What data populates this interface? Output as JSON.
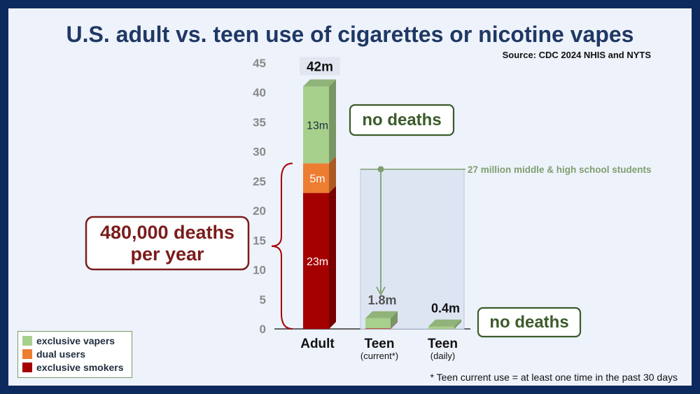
{
  "title": "U.S. adult vs. teen use of cigarettes or nicotine vapes",
  "source": "Source:  CDC 2024 NHIS and NYTS",
  "footnote": "* Teen current use = at least one time in the past 30 days",
  "annotations": {
    "deaths_adult": [
      "480,000 deaths",
      "per year"
    ],
    "no_deaths_vapers": "no deaths",
    "no_deaths_teen": "no deaths",
    "students_line": "27 million middle & high school students"
  },
  "colors": {
    "exclusive_vapers": "#a8d08d",
    "dual_users": "#ed7d31",
    "exclusive_smokers": "#a50000",
    "title": "#1f3864",
    "deaths_border": "#7b1c1c",
    "no_deaths": "#3b5b2a",
    "students": "#7f9f6f"
  },
  "chart_data": {
    "type": "bar",
    "stacked": true,
    "categories": [
      "Adult",
      "Teen",
      "Teen"
    ],
    "category_sublabels": [
      "",
      "(current*)",
      "(daily)"
    ],
    "series": [
      {
        "name": "exclusive smokers",
        "values": [
          23,
          0.07,
          0
        ]
      },
      {
        "name": "dual users",
        "values": [
          5,
          0.03,
          0
        ]
      },
      {
        "name": "exclusive vapers",
        "values": [
          13,
          1.7,
          0.4
        ]
      }
    ],
    "segment_labels": [
      [
        "23m",
        "",
        ""
      ],
      [
        "5m",
        "",
        ""
      ],
      [
        "13m",
        "",
        ""
      ]
    ],
    "total_labels": [
      "42m",
      "1.8m",
      "0.4m"
    ],
    "teen_population": 27,
    "ylim": [
      0,
      45
    ],
    "yticks": [
      0,
      5,
      10,
      15,
      20,
      25,
      30,
      35,
      40,
      45
    ],
    "legend": [
      "exclusive vapers",
      "dual users",
      "exclusive smokers"
    ],
    "legend_position": "bottom-left",
    "grid": false
  }
}
